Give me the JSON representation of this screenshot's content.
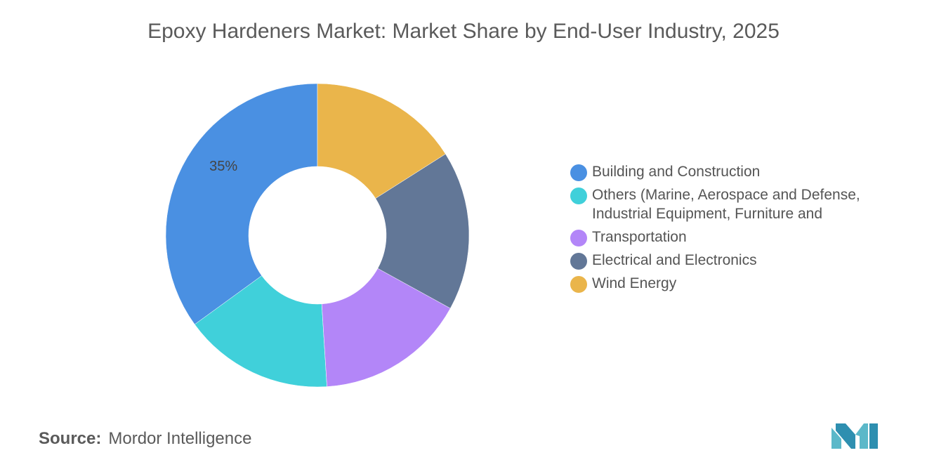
{
  "page": {
    "title": "Epoxy Hardeners Market: Market Share by End-User Industry, 2025",
    "source_label": "Source:",
    "source_value": "Mordor Intelligence",
    "logo_name": "mordor-intelligence-logo",
    "logo_color": "#5bb8c9"
  },
  "chart_data": {
    "type": "pie",
    "donut": true,
    "title": "Epoxy Hardeners Market: Market Share by End-User Industry, 2025",
    "legend_position": "right",
    "slices": [
      {
        "label": "Building and Construction",
        "value": 35,
        "color": "#4a90e2",
        "data_label": "35%"
      },
      {
        "label": "Others (Marine, Aerospace and Defense, Industrial Equipment, Furniture and",
        "value": 16,
        "color": "#40d0da",
        "data_label": ""
      },
      {
        "label": "Transportation",
        "value": 16,
        "color": "#b386f8",
        "data_label": ""
      },
      {
        "label": "Electrical and Electronics",
        "value": 17,
        "color": "#627797",
        "data_label": ""
      },
      {
        "label": "Wind Energy",
        "value": 16,
        "color": "#eab54b",
        "data_label": ""
      }
    ],
    "legend_order": [
      0,
      1,
      2,
      3,
      4
    ]
  }
}
